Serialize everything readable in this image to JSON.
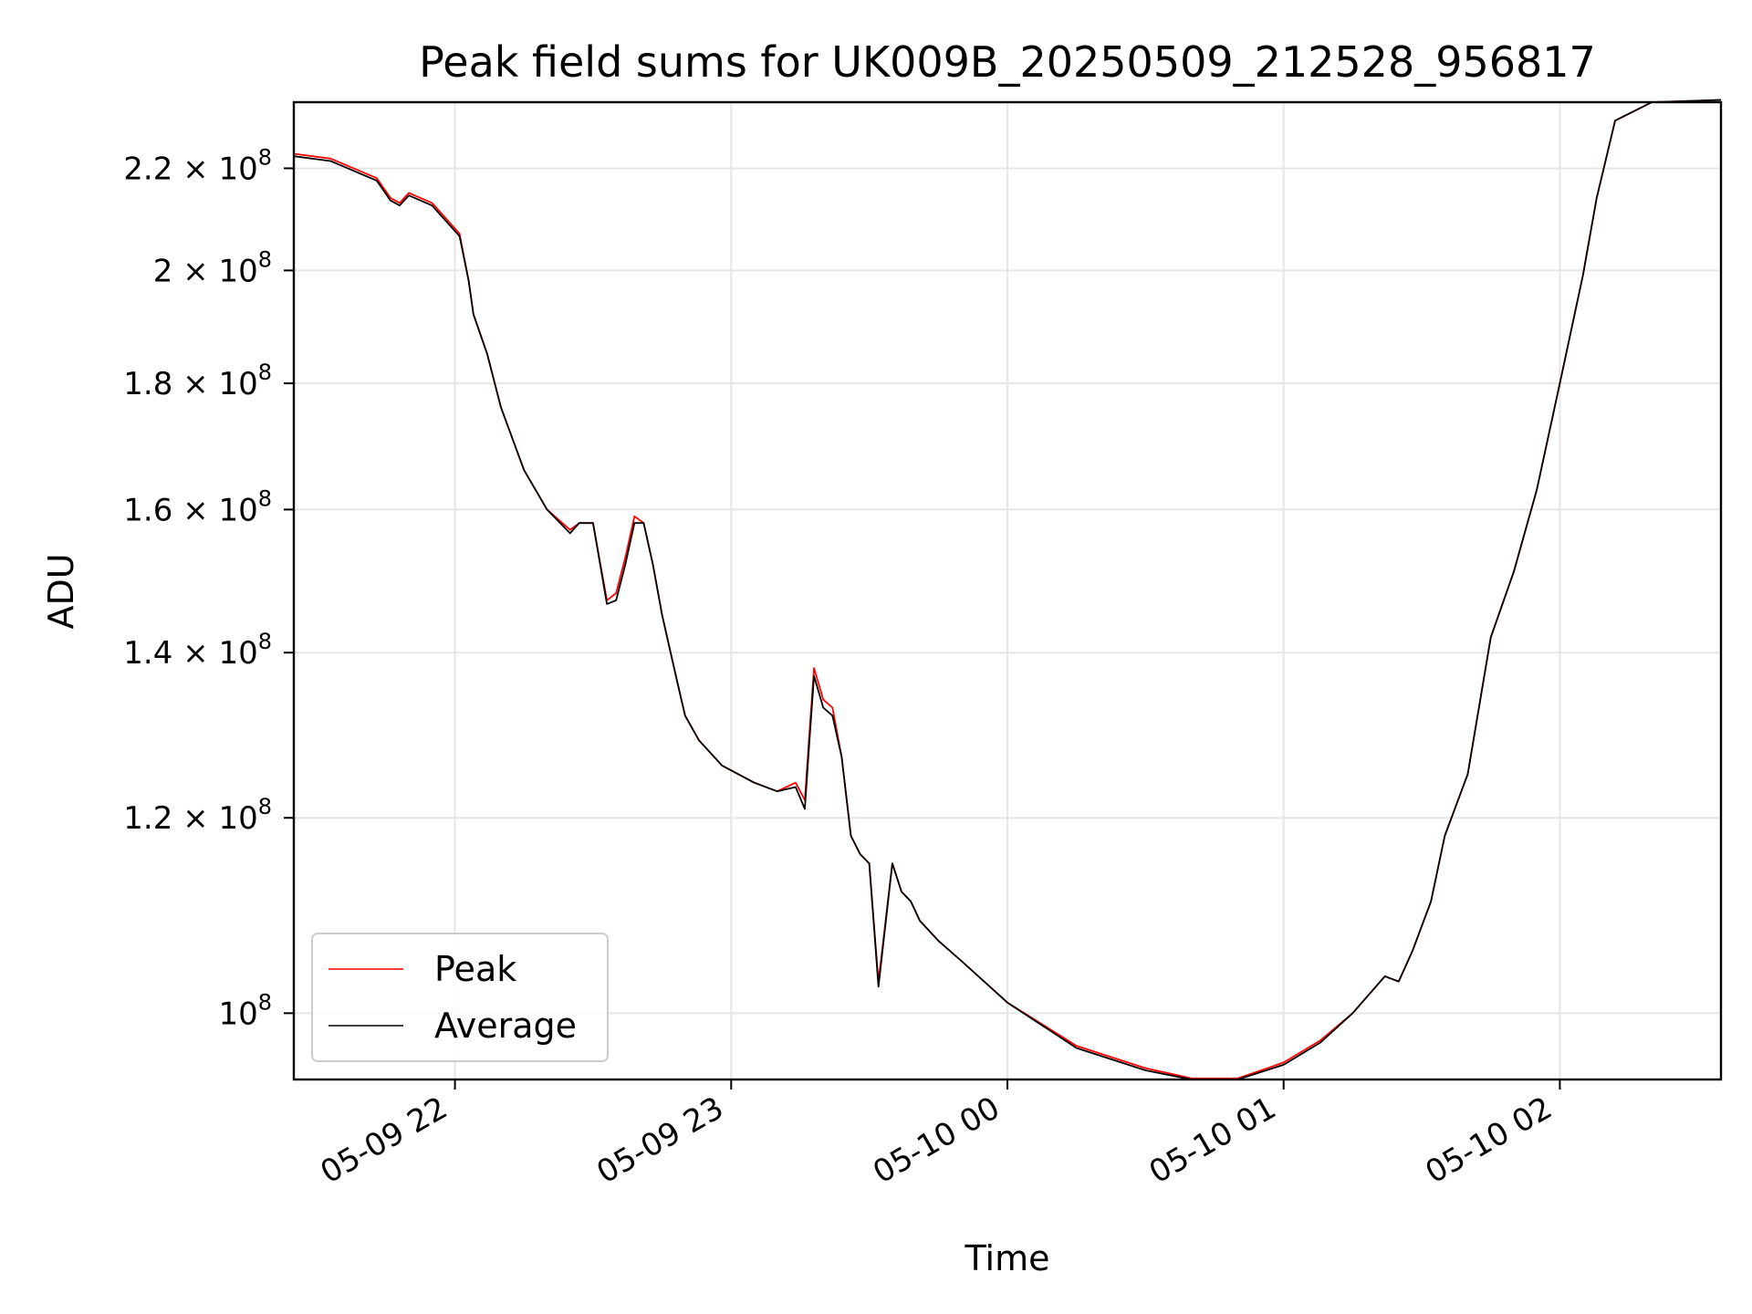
{
  "chart_data": {
    "type": "line",
    "title": "Peak field sums for UK009B_20250509_212528_956817",
    "xlabel": "Time",
    "ylabel": "ADU",
    "yscale": "log",
    "grid": true,
    "legend_position": "lower-left",
    "xlim": [
      "2025-05-09 21:25",
      "2025-05-10 02:35"
    ],
    "ylim": [
      94000000,
      234000000
    ],
    "x_ticks": [
      {
        "value": "2025-05-09 22:00",
        "label": "05-09 22"
      },
      {
        "value": "2025-05-09 23:00",
        "label": "05-09 23"
      },
      {
        "value": "2025-05-10 00:00",
        "label": "05-10 00"
      },
      {
        "value": "2025-05-10 01:00",
        "label": "05-10 01"
      },
      {
        "value": "2025-05-10 02:00",
        "label": "05-10 02"
      }
    ],
    "y_ticks": [
      {
        "value": 220000000,
        "label": "2.2 × 10",
        "exp": "8"
      },
      {
        "value": 200000000,
        "label": "2 × 10",
        "exp": "8"
      },
      {
        "value": 180000000,
        "label": "1.8 × 10",
        "exp": "8"
      },
      {
        "value": 160000000,
        "label": "1.6 × 10",
        "exp": "8"
      },
      {
        "value": 140000000,
        "label": "1.4 × 10",
        "exp": "8"
      },
      {
        "value": 120000000,
        "label": "1.2 × 10",
        "exp": "8"
      },
      {
        "value": 100000000,
        "label": "10",
        "exp": "8"
      }
    ],
    "series": [
      {
        "name": "Peak",
        "color": "#ff0000",
        "x": [
          "2025-05-09 21:25",
          "2025-05-09 21:33",
          "2025-05-09 21:43",
          "2025-05-09 21:46",
          "2025-05-09 21:48",
          "2025-05-09 21:50",
          "2025-05-09 21:55",
          "2025-05-09 22:01",
          "2025-05-09 22:03",
          "2025-05-09 22:04",
          "2025-05-09 22:07",
          "2025-05-09 22:10",
          "2025-05-09 22:15",
          "2025-05-09 22:20",
          "2025-05-09 22:25",
          "2025-05-09 22:27",
          "2025-05-09 22:30",
          "2025-05-09 22:33",
          "2025-05-09 22:35",
          "2025-05-09 22:37",
          "2025-05-09 22:39",
          "2025-05-09 22:41",
          "2025-05-09 22:43",
          "2025-05-09 22:45",
          "2025-05-09 22:48",
          "2025-05-09 22:50",
          "2025-05-09 22:53",
          "2025-05-09 22:58",
          "2025-05-09 23:05",
          "2025-05-09 23:10",
          "2025-05-09 23:14",
          "2025-05-09 23:16",
          "2025-05-09 23:17",
          "2025-05-09 23:18",
          "2025-05-09 23:20",
          "2025-05-09 23:22",
          "2025-05-09 23:24",
          "2025-05-09 23:26",
          "2025-05-09 23:28",
          "2025-05-09 23:30",
          "2025-05-09 23:32",
          "2025-05-09 23:35",
          "2025-05-09 23:37",
          "2025-05-09 23:39",
          "2025-05-09 23:40",
          "2025-05-09 23:41",
          "2025-05-09 23:45",
          "2025-05-09 23:50",
          "2025-05-10 00:00",
          "2025-05-10 00:15",
          "2025-05-10 00:30",
          "2025-05-10 00:40",
          "2025-05-10 00:50",
          "2025-05-10 01:00",
          "2025-05-10 01:08",
          "2025-05-10 01:15",
          "2025-05-10 01:22",
          "2025-05-10 01:25",
          "2025-05-10 01:28",
          "2025-05-10 01:32",
          "2025-05-10 01:35",
          "2025-05-10 01:40",
          "2025-05-10 01:45",
          "2025-05-10 01:50",
          "2025-05-10 01:55",
          "2025-05-10 02:00",
          "2025-05-10 02:05",
          "2025-05-10 02:08",
          "2025-05-10 02:12",
          "2025-05-10 02:20",
          "2025-05-10 02:35"
        ],
        "y": [
          223000000,
          222000000,
          218000000,
          214000000,
          213000000,
          215000000,
          213000000,
          207000000,
          198000000,
          192000000,
          185000000,
          176000000,
          166000000,
          160000000,
          157000000,
          158000000,
          158000000,
          147000000,
          148000000,
          153000000,
          159000000,
          158000000,
          152000000,
          145000000,
          137000000,
          132000000,
          129000000,
          126000000,
          124000000,
          123000000,
          124000000,
          122000000,
          130000000,
          138000000,
          134000000,
          133000000,
          127000000,
          118000000,
          116000000,
          115000000,
          103000000,
          115000000,
          112000000,
          111000000,
          110000000,
          109000000,
          107000000,
          105000000,
          101000000,
          97000000,
          95000000,
          94100000,
          94100000,
          95500000,
          97500000,
          100000000,
          103500000,
          103000000,
          106000000,
          111000000,
          118000000,
          125000000,
          142000000,
          151000000,
          163000000,
          180000000,
          199000000,
          214000000,
          230000000,
          234000000,
          234500000
        ]
      },
      {
        "name": "Average",
        "color": "#000000",
        "x": [
          "2025-05-09 21:25",
          "2025-05-09 21:33",
          "2025-05-09 21:43",
          "2025-05-09 21:46",
          "2025-05-09 21:48",
          "2025-05-09 21:50",
          "2025-05-09 21:55",
          "2025-05-09 22:01",
          "2025-05-09 22:03",
          "2025-05-09 22:04",
          "2025-05-09 22:07",
          "2025-05-09 22:10",
          "2025-05-09 22:15",
          "2025-05-09 22:20",
          "2025-05-09 22:25",
          "2025-05-09 22:27",
          "2025-05-09 22:30",
          "2025-05-09 22:33",
          "2025-05-09 22:35",
          "2025-05-09 22:37",
          "2025-05-09 22:39",
          "2025-05-09 22:41",
          "2025-05-09 22:43",
          "2025-05-09 22:45",
          "2025-05-09 22:48",
          "2025-05-09 22:50",
          "2025-05-09 22:53",
          "2025-05-09 22:58",
          "2025-05-09 23:05",
          "2025-05-09 23:10",
          "2025-05-09 23:14",
          "2025-05-09 23:16",
          "2025-05-09 23:17",
          "2025-05-09 23:18",
          "2025-05-09 23:20",
          "2025-05-09 23:22",
          "2025-05-09 23:24",
          "2025-05-09 23:26",
          "2025-05-09 23:28",
          "2025-05-09 23:30",
          "2025-05-09 23:32",
          "2025-05-09 23:35",
          "2025-05-09 23:37",
          "2025-05-09 23:39",
          "2025-05-09 23:40",
          "2025-05-09 23:41",
          "2025-05-09 23:45",
          "2025-05-09 23:50",
          "2025-05-10 00:00",
          "2025-05-10 00:15",
          "2025-05-10 00:30",
          "2025-05-10 00:40",
          "2025-05-10 00:50",
          "2025-05-10 01:00",
          "2025-05-10 01:08",
          "2025-05-10 01:15",
          "2025-05-10 01:22",
          "2025-05-10 01:25",
          "2025-05-10 01:28",
          "2025-05-10 01:32",
          "2025-05-10 01:35",
          "2025-05-10 01:40",
          "2025-05-10 01:45",
          "2025-05-10 01:50",
          "2025-05-10 01:55",
          "2025-05-10 02:00",
          "2025-05-10 02:05",
          "2025-05-10 02:08",
          "2025-05-10 02:12",
          "2025-05-10 02:20",
          "2025-05-10 02:35"
        ],
        "y": [
          222500000,
          221500000,
          217500000,
          213500000,
          212500000,
          214500000,
          212500000,
          206500000,
          198000000,
          192000000,
          185000000,
          176000000,
          166000000,
          160000000,
          156500000,
          158000000,
          158000000,
          146500000,
          147000000,
          152000000,
          158000000,
          158000000,
          152000000,
          145000000,
          137000000,
          132000000,
          129000000,
          126000000,
          124000000,
          123000000,
          123500000,
          121000000,
          129000000,
          137000000,
          133000000,
          132000000,
          127000000,
          118000000,
          116000000,
          115000000,
          102500000,
          115000000,
          112000000,
          111000000,
          110000000,
          109000000,
          107000000,
          105000000,
          101000000,
          96800000,
          94800000,
          94000000,
          94000000,
          95300000,
          97300000,
          100000000,
          103500000,
          103000000,
          106000000,
          111000000,
          118000000,
          125000000,
          142000000,
          151000000,
          163000000,
          180000000,
          199000000,
          214000000,
          230000000,
          234000000,
          234500000
        ]
      }
    ]
  }
}
